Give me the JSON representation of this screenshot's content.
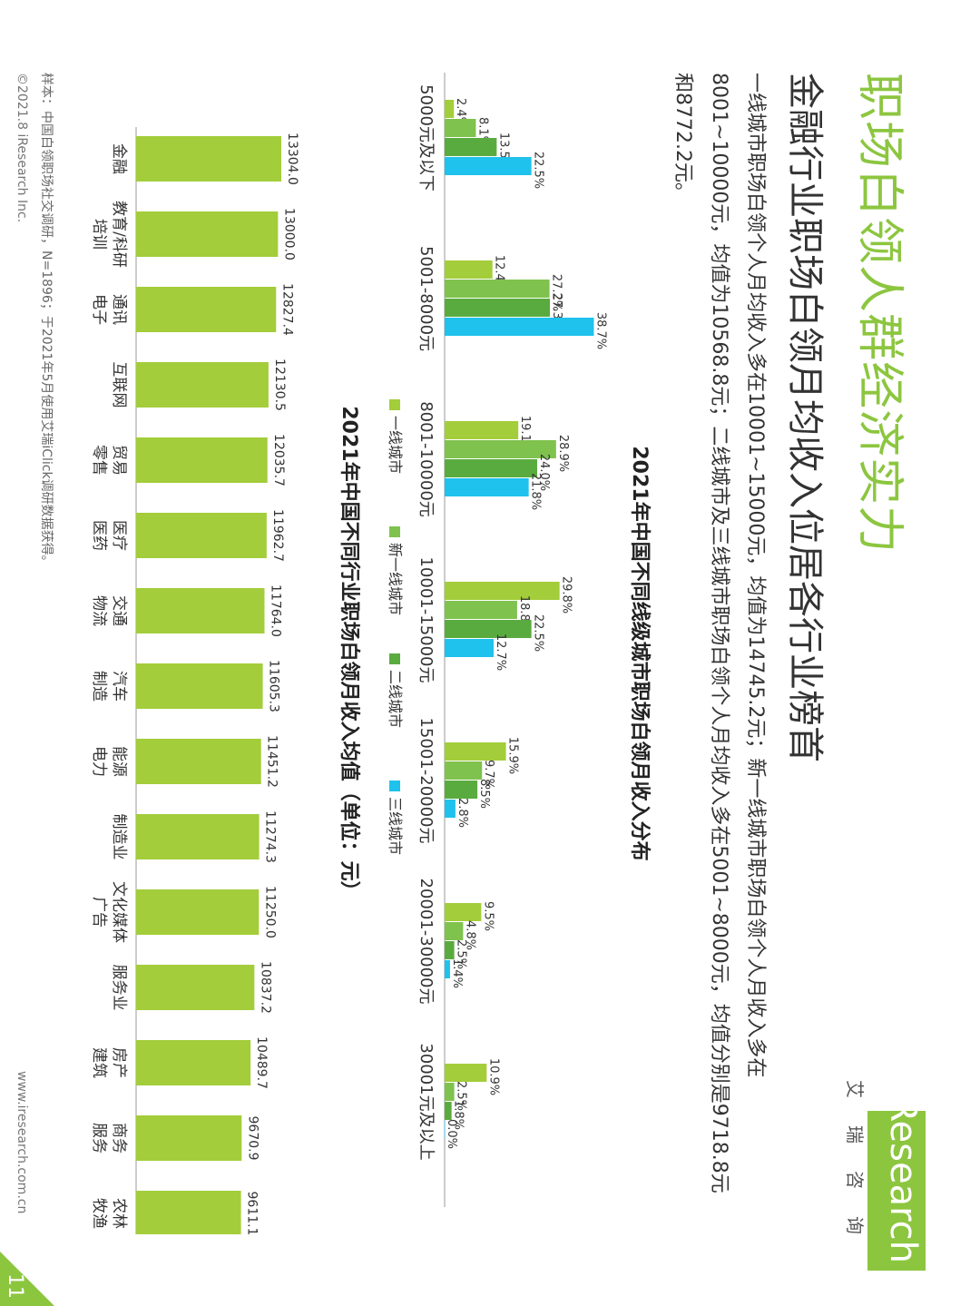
{
  "header": {
    "title": "职场白领人群经济实力",
    "subtitle": "金融行业职场白领月均收入位居各行业榜首",
    "description": "一线城市职场白领个人月均收入多在10001~15000元，均值为14745.2元；新一线城市职场白领个人月收入多在8001~10000元，均值为10568.8元；二线城市及三线城市职场白领个人月均收入多在5001~8000元，均值分别是9718.8元和8772.2元。"
  },
  "logo": {
    "text": "iResearch",
    "cn": "艾瑞咨询"
  },
  "footer": {
    "sample_note": "样本：中国白领职场社交调研，N=1896；于2021年5月使用艾瑞iClick调研数据获得。",
    "copyright": "©2021.8 iResearch Inc.",
    "website": "www.iresearch.com.cn",
    "page_number": "11"
  },
  "colors": {
    "tier1": "#a3cd3a",
    "new_tier1": "#7fc24e",
    "tier2": "#5aab3f",
    "tier3": "#1fc2ec",
    "bar2": "#a3cd3a",
    "accent": "#8cc63f"
  },
  "chart_data": [
    {
      "type": "bar",
      "title": "2021年中国不同线级城市职场白领月收入分布",
      "categories": [
        "5000元及以下",
        "5001-8000元",
        "8001-10000元",
        "10001-15000元",
        "15001-20000元",
        "20001-30000元",
        "30001元及以上"
      ],
      "series": [
        {
          "name": "一线城市",
          "values": [
            2.4,
            12.4,
            19.1,
            29.8,
            15.9,
            9.5,
            10.9
          ]
        },
        {
          "name": "新一线城市",
          "values": [
            8.1,
            27.2,
            28.9,
            18.8,
            9.7,
            4.8,
            2.5
          ]
        },
        {
          "name": "二线城市",
          "values": [
            13.5,
            27.3,
            24.0,
            22.5,
            8.5,
            2.5,
            1.8
          ]
        },
        {
          "name": "三线城市",
          "values": [
            22.5,
            38.7,
            21.8,
            12.7,
            2.8,
            1.4,
            0.0
          ]
        }
      ],
      "value_labels": [
        [
          "2.4%",
          "12.4%",
          "19.1%",
          "29.8%",
          "15.9%",
          "9.5%",
          "10.9%"
        ],
        [
          "8.1%",
          "27.2%",
          "28.9%",
          "18.8%",
          "9.7%",
          "4.8%",
          "2.5%"
        ],
        [
          "13.5%",
          "27.3%",
          "24.0%",
          "22.5%",
          "8.5%",
          "2.5%",
          "1.8%"
        ],
        [
          "22.5%",
          "38.7%",
          "21.8%",
          "12.7%",
          "2.8%",
          "1.4%",
          "0.0%"
        ]
      ],
      "legend_position": "bottom",
      "grid": false
    },
    {
      "type": "bar",
      "title": "2021年中国不同行业职场白领月收入均值（单位：元）",
      "categories": [
        "金融",
        "教育/科研\n培训",
        "通讯\n电子",
        "互联网",
        "贸易\n零售",
        "医疗\n医药",
        "交通\n物流",
        "汽车\n制造",
        "能源\n电力",
        "制造业",
        "文化媒体\n广告",
        "服务业",
        "房产\n建筑",
        "商务\n服务",
        "农林\n牧渔"
      ],
      "values": [
        13304.0,
        13000.0,
        12827.4,
        12130.5,
        12035.7,
        11962.7,
        11764.0,
        11605.3,
        11451.2,
        11274.3,
        11250.0,
        10837.2,
        10489.7,
        9670.9,
        9611.1
      ],
      "value_labels": [
        "13304.0",
        "13000.0",
        "12827.4",
        "12130.5",
        "12035.7",
        "11962.7",
        "11764.0",
        "11605.3",
        "11451.2",
        "11274.3",
        "11250.0",
        "10837.2",
        "10489.7",
        "9670.9",
        "9611.1"
      ],
      "grid": false
    }
  ]
}
